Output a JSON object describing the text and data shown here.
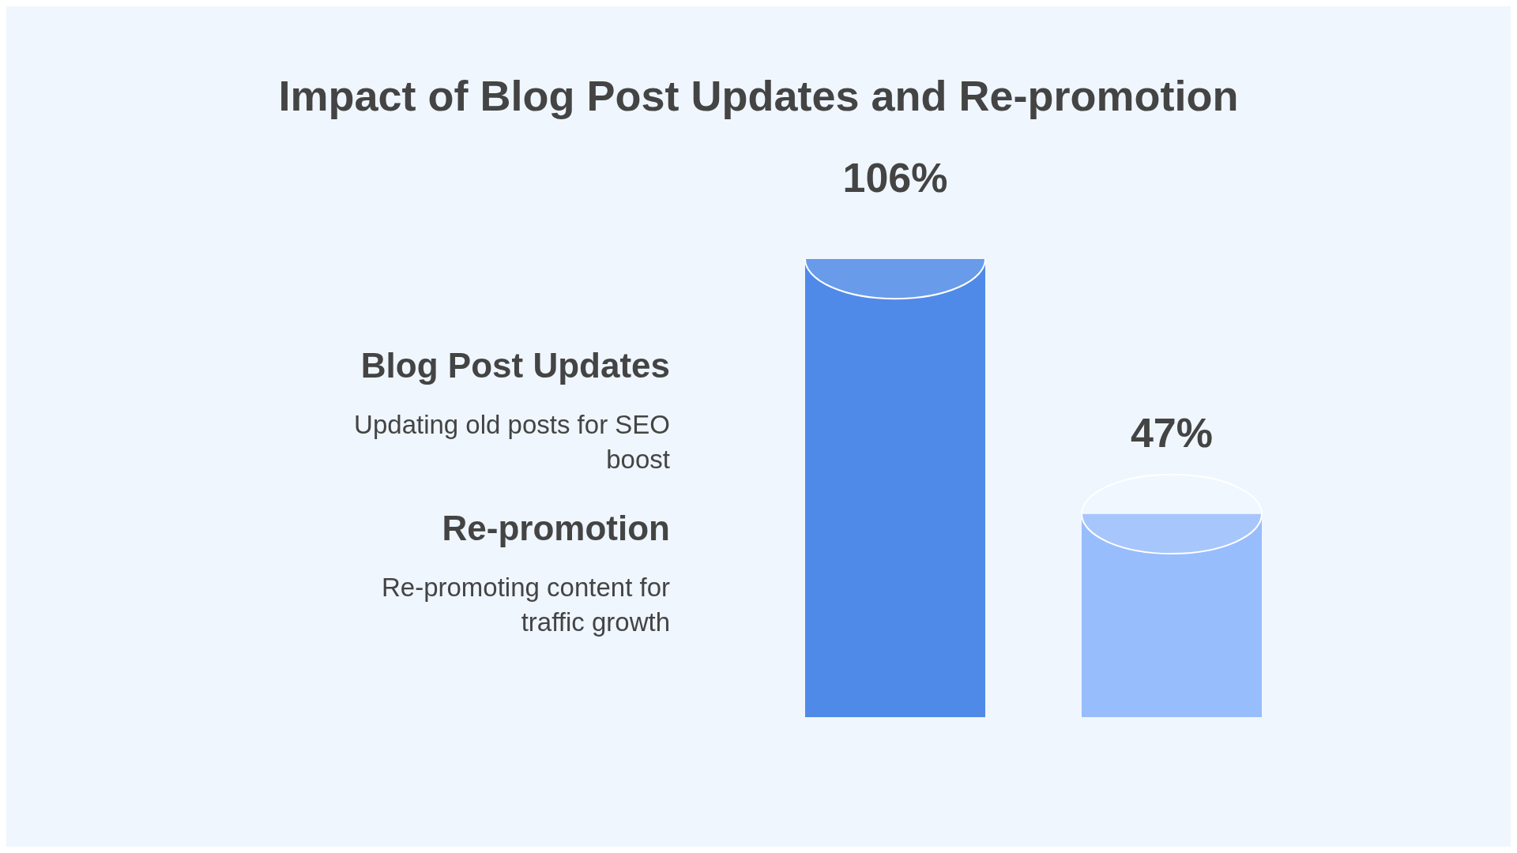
{
  "chart_data": {
    "type": "bar",
    "title": "Impact of Blog Post Updates and Re-promotion",
    "categories": [
      null,
      null
    ],
    "values": [
      106,
      47
    ],
    "value_labels": [
      "106%",
      "47%"
    ],
    "colors": [
      "#4f8ae8",
      "#98bdfc"
    ],
    "annotations": [
      "Blog Post Updates",
      "Updating old posts for SEO boost",
      "Re-promotion",
      "Re-promoting content for traffic growth"
    ]
  }
}
